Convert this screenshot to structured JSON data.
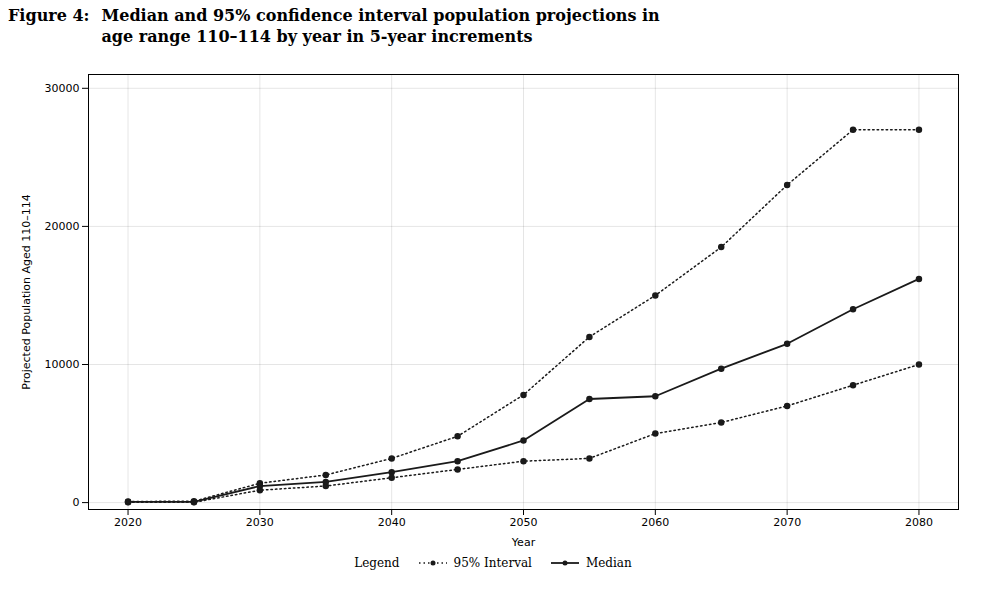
{
  "chart_data": {
    "type": "line",
    "title": "Figure 4:",
    "subtitle": "Median and 95% confidence interval population projections in\nage range 110–114 by year in 5-year increments",
    "x_label": "Year",
    "y_label": "Projected Population Aged 110–114",
    "legend_title": "Legend",
    "x": [
      2020,
      2025,
      2030,
      2035,
      2040,
      2045,
      2050,
      2055,
      2060,
      2065,
      2070,
      2075,
      2080
    ],
    "series": [
      {
        "name": "95% Interval",
        "color": "#1a1a1a",
        "line_style": "dotted",
        "marker": "circle",
        "values": [
          80,
          100,
          1400,
          2000,
          3200,
          4800,
          7800,
          12000,
          15000,
          18500,
          23000,
          27000,
          27000
        ]
      },
      {
        "name": "Median",
        "color": "#1a1a1a",
        "line_style": "solid",
        "marker": "circle",
        "values": [
          50,
          50,
          1200,
          1500,
          2200,
          3000,
          4500,
          7500,
          7700,
          9700,
          11500,
          14000,
          16200
        ]
      },
      {
        "name": "95% Interval",
        "color": "#1a1a1a",
        "line_style": "dotted",
        "marker": "circle",
        "values": [
          20,
          20,
          900,
          1200,
          1800,
          2400,
          3000,
          3200,
          5000,
          5800,
          7000,
          8500,
          10000
        ]
      }
    ],
    "xlim": [
      2017,
      2083
    ],
    "xticks": [
      2020,
      2030,
      2040,
      2050,
      2060,
      2070,
      2080
    ],
    "ylim": [
      -500,
      31000
    ],
    "yticks": [
      0,
      10000,
      20000,
      30000
    ],
    "grid": true
  }
}
